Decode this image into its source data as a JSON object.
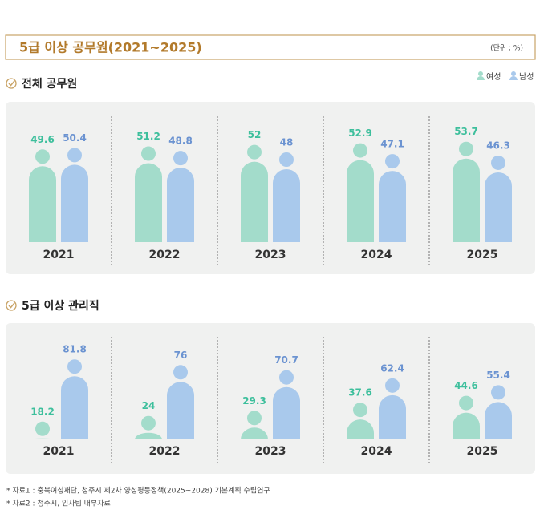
{
  "title": "5급 이상 공무원(2021~2025)",
  "unit": "(단위 : %)",
  "chart_data": [
    {
      "type": "bar",
      "title": "전체 공무원",
      "categories": [
        "2021",
        "2022",
        "2023",
        "2024",
        "2025"
      ],
      "series": [
        {
          "name": "여성",
          "color": "#a3dccb",
          "label_color": "#3dbf9c",
          "values": [
            49.6,
            51.2,
            52.0,
            52.9,
            53.7
          ]
        },
        {
          "name": "남성",
          "color": "#a9c9ec",
          "label_color": "#6b93d1",
          "values": [
            50.4,
            48.8,
            48.0,
            47.1,
            46.3
          ]
        }
      ],
      "ylim": [
        0,
        60
      ]
    },
    {
      "type": "bar",
      "title": "5급 이상 관리직",
      "categories": [
        "2021",
        "2022",
        "2023",
        "2024",
        "2025"
      ],
      "series": [
        {
          "color": "#a3dccb",
          "label_color": "#3dbf9c",
          "values": [
            18.2,
            24.0,
            29.3,
            37.6,
            44.6
          ]
        },
        {
          "color": "#a9c9ec",
          "label_color": "#6b93d1",
          "values": [
            81.8,
            76.0,
            70.7,
            62.4,
            55.4
          ]
        }
      ],
      "ylim": [
        0,
        100
      ]
    }
  ],
  "notes": [
    "* 자료1 : 충북여성재단, 청주시 제2차 양성평등정책(2025~2028) 기본계획 수립연구",
    "* 자료2 : 청주시, 인사팀 내부자료"
  ]
}
